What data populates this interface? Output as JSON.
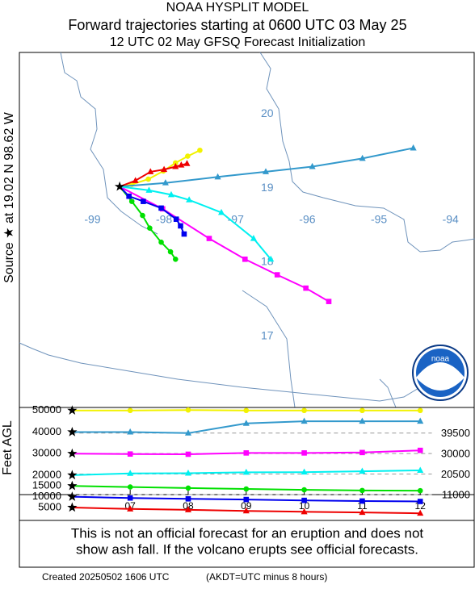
{
  "title_lines": [
    "NOAA HYSPLIT MODEL",
    "Forward trajectories starting at 0600 UTC 03 May 25",
    "12 UTC 02 May    GFSQ  Forecast Initialization"
  ],
  "source_label": "Source ★ at   19.02 N   98.62 W",
  "source": {
    "lat": 19.02,
    "lon": -98.62
  },
  "map": {
    "lonlim": [
      -100.02,
      -93.67
    ],
    "latlim": [
      16.04,
      20.83
    ],
    "lonticks": [
      -99,
      -98,
      -97,
      -96,
      -95,
      -94
    ],
    "latticks": [
      17,
      18,
      19,
      20
    ]
  },
  "height_panel": {
    "ylabel": "Feet AGL",
    "xlim": [
      5.09,
      12.93
    ],
    "ylim": [
      -1000,
      51400
    ],
    "xticks": [
      {
        "value": 7,
        "label": "07"
      },
      {
        "value": 8,
        "label": "08"
      },
      {
        "value": 9,
        "label": "09"
      },
      {
        "value": 10,
        "label": "10"
      },
      {
        "value": 11,
        "label": "11"
      },
      {
        "value": 12,
        "label": "12"
      }
    ],
    "dashed_levels": [
      39500,
      30000,
      20500,
      11000
    ]
  },
  "hours": [
    6,
    7,
    8,
    9,
    10,
    11,
    12
  ],
  "trajectories": [
    {
      "color": "#f2f200",
      "marker": "circle",
      "lon": [
        -98.62,
        -98.45,
        -98.22,
        -98.01,
        -97.84,
        -97.67,
        -97.5
      ],
      "lat": [
        19.02,
        19.05,
        19.12,
        19.23,
        19.34,
        19.43,
        19.51
      ],
      "heights": [
        50000,
        50000,
        50200,
        50000,
        50000,
        50000,
        50000
      ]
    },
    {
      "color": "#3399cc",
      "marker": "triangle",
      "lon": [
        -98.62,
        -97.98,
        -97.25,
        -96.58,
        -95.93,
        -95.23,
        -94.52
      ],
      "lat": [
        19.02,
        19.07,
        19.15,
        19.22,
        19.29,
        19.4,
        19.54
      ],
      "heights": [
        40000,
        40000,
        39500,
        44000,
        45000,
        45000,
        45000
      ]
    },
    {
      "color": "#ff00ff",
      "marker": "square",
      "lon": [
        -98.62,
        -98.02,
        -97.37,
        -96.87,
        -96.42,
        -96.02,
        -95.7
      ],
      "lat": [
        19.02,
        18.72,
        18.32,
        18.04,
        17.83,
        17.65,
        17.47
      ],
      "heights": [
        30000,
        29800,
        29700,
        30300,
        30300,
        30500,
        31500
      ]
    },
    {
      "color": "#00f0f0",
      "marker": "triangle",
      "lon": [
        -98.62,
        -98.21,
        -97.9,
        -97.65,
        -97.2,
        -96.75,
        -96.51
      ],
      "lat": [
        19.02,
        18.97,
        18.91,
        18.84,
        18.67,
        18.32,
        18.04
      ],
      "heights": [
        20000,
        20800,
        20900,
        21300,
        21400,
        21800,
        22200
      ]
    },
    {
      "color": "#00e000",
      "marker": "circle",
      "lon": [
        -98.62,
        -98.45,
        -98.3,
        -98.2,
        -98.04,
        -97.91,
        -97.84
      ],
      "lat": [
        19.02,
        18.82,
        18.63,
        18.46,
        18.27,
        18.14,
        18.04
      ],
      "heights": [
        15000,
        14500,
        14000,
        13600,
        13200,
        12900,
        12800
      ]
    },
    {
      "color": "#0000ee",
      "marker": "square",
      "lon": [
        -98.62,
        -98.49,
        -98.29,
        -98.04,
        -97.83,
        -97.77,
        -97.72
      ],
      "lat": [
        19.02,
        18.89,
        18.82,
        18.73,
        18.58,
        18.49,
        18.38
      ],
      "heights": [
        10000,
        9400,
        9000,
        8700,
        8300,
        8000,
        7800
      ]
    },
    {
      "color": "#ee0000",
      "marker": "triangle",
      "lon": [
        -98.62,
        -98.4,
        -98.19,
        -98.0,
        -97.84,
        -97.76,
        -97.68
      ],
      "lat": [
        19.02,
        19.1,
        19.22,
        19.25,
        19.29,
        19.31,
        19.33
      ],
      "heights": [
        5000,
        4300,
        3900,
        3400,
        3000,
        2700,
        2300
      ]
    }
  ],
  "disclaimer": [
    "This is not an official forecast for an eruption and does not",
    "show ash fall. If the volcano erupts see official forecasts."
  ],
  "footer": "Created 20250502 1606 UTC",
  "footer_note": "(AKDT=UTC minus 8 hours)"
}
